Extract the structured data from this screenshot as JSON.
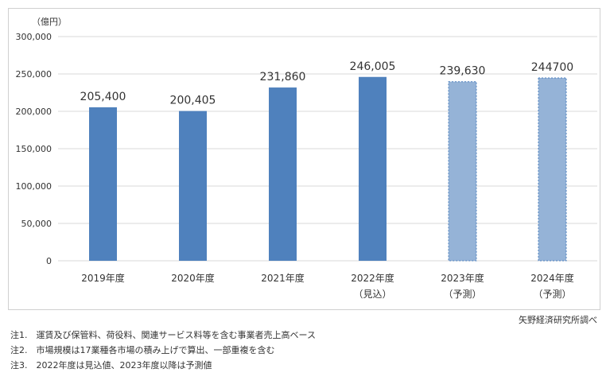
{
  "chart_data": {
    "type": "bar",
    "unit_label": "（億円）",
    "y_ticks": [
      "300,000",
      "250,000",
      "200,000",
      "150,000",
      "100,000",
      "50,000",
      "0"
    ],
    "y_tick_values": [
      300000,
      250000,
      200000,
      150000,
      100000,
      50000,
      0
    ],
    "ylim": [
      0,
      300000
    ],
    "grid": true,
    "legend": "none",
    "categories": [
      {
        "label": "2019年度",
        "sublabel": "",
        "style": "actual"
      },
      {
        "label": "2020年度",
        "sublabel": "",
        "style": "actual"
      },
      {
        "label": "2021年度",
        "sublabel": "",
        "style": "actual"
      },
      {
        "label": "2022年度",
        "sublabel": "（見込）",
        "style": "actual"
      },
      {
        "label": "2023年度",
        "sublabel": "（予測）",
        "style": "forecast"
      },
      {
        "label": "2024年度",
        "sublabel": "（予測）",
        "style": "forecast"
      }
    ],
    "values": [
      205400,
      200405,
      231860,
      246005,
      239630,
      244700
    ],
    "data_labels": [
      "205,400",
      "200,405",
      "231,860",
      "246,005",
      "239,630",
      "244700"
    ],
    "colors": {
      "actual": "#4f81bd",
      "forecast": "#95b3d7",
      "grid": "#d9d9d9"
    }
  },
  "source": "矢野経済研究所調べ",
  "notes": [
    "注1.　運賃及び保管料、荷役料、関連サービス料等を含む事業者売上高ベース",
    "注2.　市場規模は17業種各市場の積み上げで算出、一部重複を含む",
    "注3.　2022年度は見込値、2023年度以降は予測値"
  ]
}
